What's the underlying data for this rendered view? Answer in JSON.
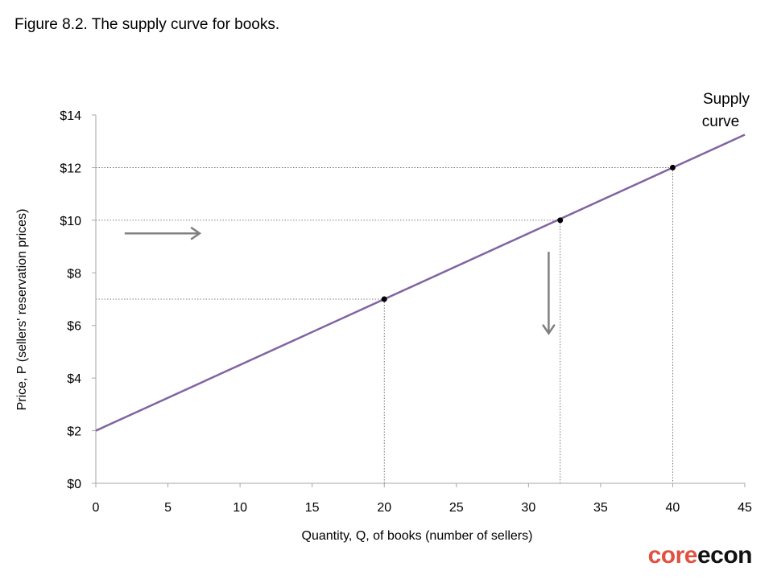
{
  "figure_title": "Figure 8.2. The supply curve for books.",
  "logo": {
    "part1": "core",
    "part2": "econ"
  },
  "colors": {
    "curve": "#8064a2",
    "arrow": "#808080",
    "axis": "#a6a6a6",
    "logo_red": "#e2513f"
  },
  "chart_data": {
    "type": "line",
    "title": "Figure 8.2. The supply curve for books.",
    "xlabel": "Quantity, Q, of books (number of sellers)",
    "ylabel": "Price, P (sellers' reservation prices)",
    "xlim": [
      0,
      45
    ],
    "ylim": [
      0,
      14
    ],
    "xticks": [
      0,
      5,
      10,
      15,
      20,
      25,
      30,
      35,
      40,
      45
    ],
    "xtick_labels": [
      "0",
      "5",
      "10",
      "15",
      "20",
      "25",
      "30",
      "35",
      "40",
      "45"
    ],
    "yticks": [
      0,
      2,
      4,
      6,
      8,
      10,
      12,
      14
    ],
    "ytick_labels": [
      "$0",
      "$2",
      "$4",
      "$6",
      "$8",
      "$10",
      "$12",
      "$14"
    ],
    "grid": false,
    "series": [
      {
        "name": "Supply curve",
        "x": [
          0,
          45
        ],
        "y": [
          2,
          13.25
        ]
      }
    ],
    "series_label_lines": [
      "Supply",
      "curve"
    ],
    "points": [
      {
        "x": 20,
        "y": 7
      },
      {
        "x": 32.2,
        "y": 10
      },
      {
        "x": 40,
        "y": 12
      }
    ],
    "arrows": [
      {
        "direction": "right",
        "from": [
          2,
          9.5
        ],
        "to": [
          7.2,
          9.5
        ]
      },
      {
        "direction": "down",
        "from": [
          31.4,
          8.8
        ],
        "to": [
          31.4,
          5.7
        ]
      }
    ]
  }
}
